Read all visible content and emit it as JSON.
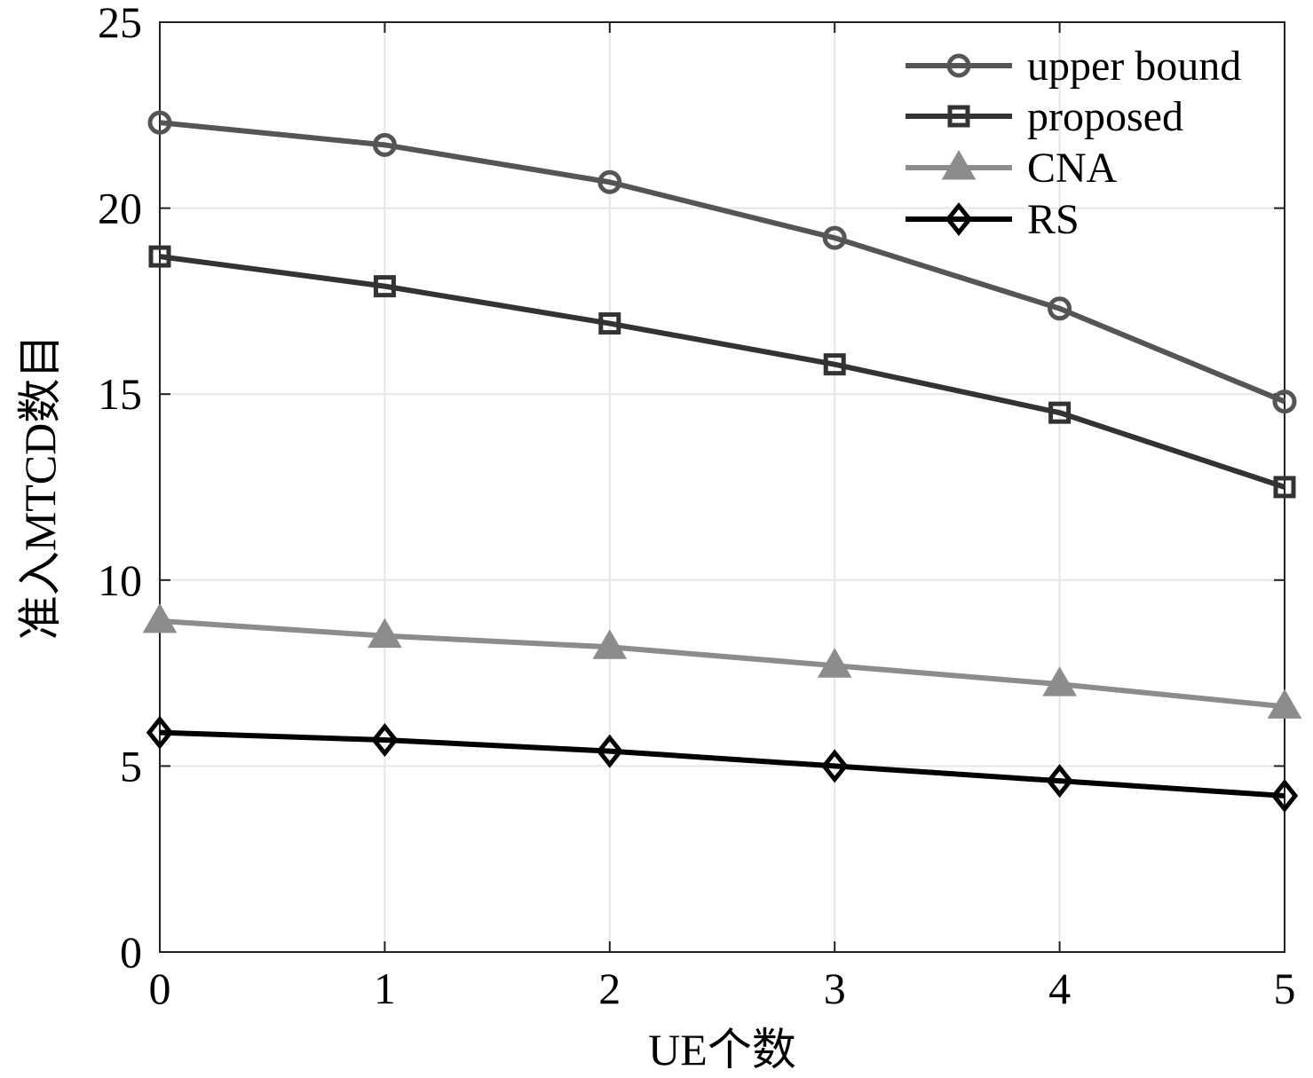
{
  "chart_data": {
    "type": "line",
    "title": "",
    "xlabel": "UE个数",
    "ylabel": "准入MTCD数目",
    "x": [
      0,
      1,
      2,
      3,
      4,
      5
    ],
    "xlim": [
      0,
      5
    ],
    "ylim": [
      0,
      25
    ],
    "xticks": [
      "0",
      "1",
      "2",
      "3",
      "4",
      "5"
    ],
    "yticks": [
      "0",
      "5",
      "10",
      "15",
      "20",
      "25"
    ],
    "grid": true,
    "legend_position": "top-right",
    "series": [
      {
        "name": "upper bound",
        "values": [
          22.3,
          21.7,
          20.7,
          19.2,
          17.3,
          14.8
        ],
        "marker": "circle",
        "color": "#555555"
      },
      {
        "name": "proposed",
        "values": [
          18.7,
          17.9,
          16.9,
          15.8,
          14.5,
          12.5
        ],
        "marker": "square",
        "color": "#333333"
      },
      {
        "name": "CNA",
        "values": [
          8.9,
          8.5,
          8.2,
          7.7,
          7.2,
          6.6
        ],
        "marker": "triangle",
        "color": "#8c8c8c"
      },
      {
        "name": "RS",
        "values": [
          5.9,
          5.7,
          5.4,
          5.0,
          4.6,
          4.2
        ],
        "marker": "diamond",
        "color": "#000000"
      }
    ]
  }
}
